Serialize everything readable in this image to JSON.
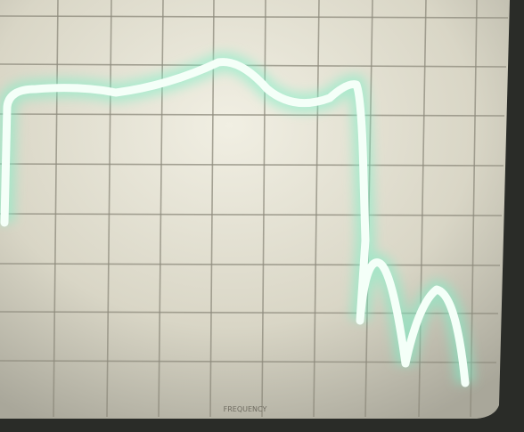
{
  "screen": {
    "x_label": "FREQUENCY"
  }
}
